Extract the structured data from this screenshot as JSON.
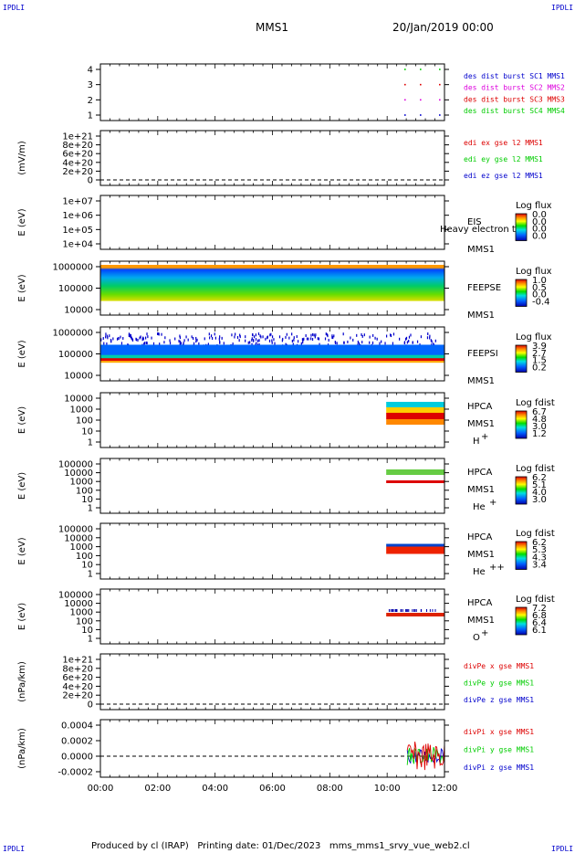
{
  "header": {
    "corner_label": "IPDLI",
    "title": "MMS1",
    "date": "20/Jan/2019 00:00"
  },
  "footer": {
    "text": "Produced by cl (IRAP)   Printing date: 01/Dec/2023   mms_mms1_srvy_vue_web2.cl"
  },
  "colors": {
    "red": "#dd0000",
    "magenta": "#dd00dd",
    "green": "#00cc00",
    "blue": "#0000cc"
  },
  "chart_data": {
    "type": "multi-panel time series",
    "x_ticks": [
      "00:00",
      "02:00",
      "04:00",
      "06:00",
      "08:00",
      "10:00",
      "12:00"
    ],
    "panels": [
      {
        "id": "burst",
        "y_ticks": [
          "4",
          "3",
          "2",
          "1"
        ],
        "legend": [
          {
            "text": "des dist burst SC1 MMS1",
            "color": "#0000cc"
          },
          {
            "text": "des dist burst SC2 MMS2",
            "color": "#dd00dd"
          },
          {
            "text": "des dist burst SC3 MMS3",
            "color": "#dd0000"
          },
          {
            "text": "des dist burst SC4 MMS4",
            "color": "#00cc00"
          }
        ]
      },
      {
        "id": "edi-e",
        "ylabel": "(mV/m)",
        "y_ticks": [
          "1e+21",
          "8e+20",
          "6e+20",
          "4e+20",
          "2e+20",
          "0"
        ],
        "legend": [
          {
            "text": "edi ex gse l2 MMS1",
            "color": "#dd0000"
          },
          {
            "text": "edi ey gse l2 MMS1",
            "color": "#00cc00"
          },
          {
            "text": "edi ez gse l2 MMS1",
            "color": "#0000cc"
          }
        ]
      },
      {
        "id": "eis",
        "ylabel": "E (eV)",
        "y_ticks": [
          "1e+07",
          "1e+06",
          "1e+05",
          "1e+04"
        ],
        "instrument": "EIS",
        "sc": "MMS1",
        "overlay": "Heavy electron to",
        "cbar_title": "Log flux",
        "cbar_ticks": [
          "0.0",
          "0.0",
          "0.0",
          "0.0"
        ]
      },
      {
        "id": "feeps-e",
        "ylabel": "E (eV)",
        "y_ticks": [
          "1000000",
          "100000",
          "10000"
        ],
        "instrument": "FEEPSE",
        "sc": "MMS1",
        "cbar_title": "Log flux",
        "cbar_ticks": [
          "1.0",
          "0.5",
          "0.0",
          "-0.4"
        ]
      },
      {
        "id": "feeps-i",
        "ylabel": "E (eV)",
        "y_ticks": [
          "1000000",
          "100000",
          "10000"
        ],
        "instrument": "FEEPSI",
        "sc": "MMS1",
        "cbar_title": "Log flux",
        "cbar_ticks": [
          "3.9",
          "2.7",
          "1.5",
          "0.2"
        ]
      },
      {
        "id": "hpca-h",
        "ylabel": "E (eV)",
        "y_ticks": [
          "10000",
          "1000",
          "100",
          "10",
          "1"
        ],
        "instrument": "HPCA",
        "sc": "MMS1",
        "species": "H",
        "charge": "+",
        "cbar_title": "Log fdist",
        "cbar_ticks": [
          "6.7",
          "4.8",
          "3.0",
          "1.2"
        ]
      },
      {
        "id": "hpca-he1",
        "ylabel": "E (eV)",
        "y_ticks": [
          "100000",
          "10000",
          "1000",
          "100",
          "10",
          "1"
        ],
        "instrument": "HPCA",
        "sc": "MMS1",
        "species": "He",
        "charge": "+",
        "cbar_title": "Log fdist",
        "cbar_ticks": [
          "6.2",
          "5.1",
          "4.0",
          "3.0"
        ]
      },
      {
        "id": "hpca-he2",
        "ylabel": "E (eV)",
        "y_ticks": [
          "100000",
          "10000",
          "1000",
          "100",
          "10",
          "1"
        ],
        "instrument": "HPCA",
        "sc": "MMS1",
        "species": "He",
        "charge": "++",
        "cbar_title": "Log fdist",
        "cbar_ticks": [
          "6.2",
          "5.3",
          "4.3",
          "3.4"
        ]
      },
      {
        "id": "hpca-o",
        "ylabel": "E (eV)",
        "y_ticks": [
          "100000",
          "10000",
          "1000",
          "100",
          "10",
          "1"
        ],
        "instrument": "HPCA",
        "sc": "MMS1",
        "species": "O",
        "charge": "+",
        "cbar_title": "Log fdist",
        "cbar_ticks": [
          "7.2",
          "6.8",
          "6.4",
          "6.1"
        ]
      },
      {
        "id": "divpe",
        "ylabel": "(nPa/km)",
        "y_ticks": [
          "1e+21",
          "8e+20",
          "6e+20",
          "4e+20",
          "2e+20",
          "0"
        ],
        "legend": [
          {
            "text": "divPe x gse MMS1",
            "color": "#dd0000"
          },
          {
            "text": "divPe y gse MMS1",
            "color": "#00cc00"
          },
          {
            "text": "divPe z gse MMS1",
            "color": "#0000cc"
          }
        ]
      },
      {
        "id": "divpi",
        "ylabel": "(nPa/km)",
        "y_ticks": [
          "0.0004",
          "0.0002",
          "0.0000",
          "-0.0002"
        ],
        "legend": [
          {
            "text": "divPi x gse MMS1",
            "color": "#dd0000"
          },
          {
            "text": "divPi y gse MMS1",
            "color": "#00cc00"
          },
          {
            "text": "divPi z gse MMS1",
            "color": "#0000cc"
          }
        ]
      }
    ]
  }
}
